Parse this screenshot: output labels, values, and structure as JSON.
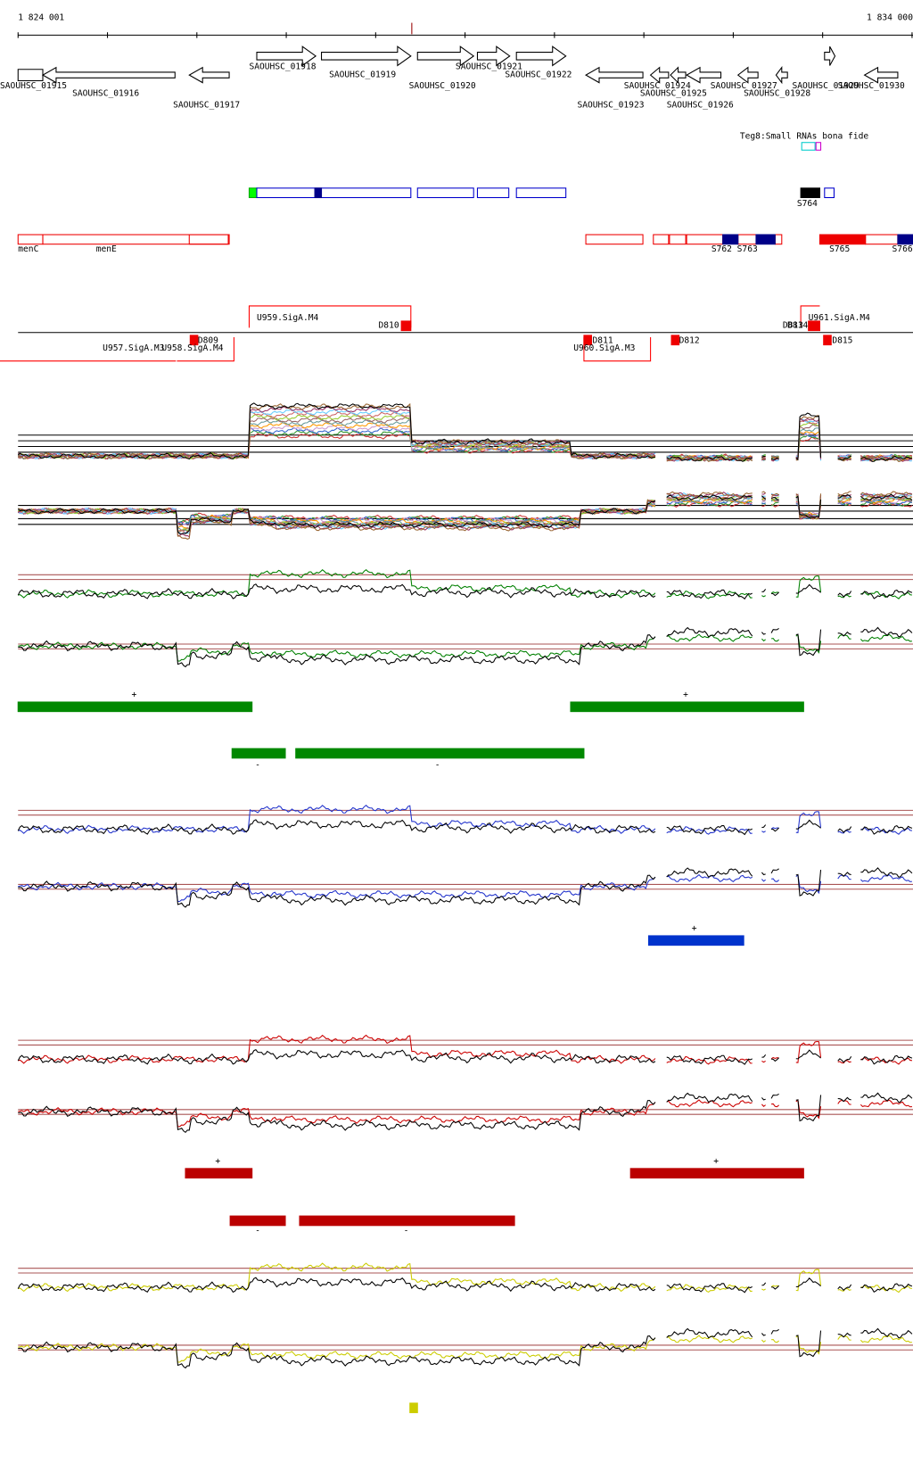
{
  "ruler": {
    "start": "1 824 001",
    "end": "1 834 000"
  },
  "genes": [
    "SAOUHSC_01915",
    "SAOUHSC_01916",
    "SAOUHSC_01917",
    "SAOUHSC_01918",
    "SAOUHSC_01919",
    "SAOUHSC_01920",
    "SAOUHSC_01921",
    "SAOUHSC_01922",
    "SAOUHSC_01923",
    "SAOUHSC_01924",
    "SAOUHSC_01925",
    "SAOUHSC_01926",
    "SAOUHSC_01927",
    "SAOUHSC_01928",
    "SAOUHSC_01929",
    "SAOUHSC_01930"
  ],
  "small_rnas": {
    "title": "Teg8:Small RNAs bona fide",
    "labels": [
      "S764"
    ]
  },
  "features": [
    "menC",
    "menE",
    "S762",
    "S763",
    "S765",
    "S766"
  ],
  "promoters": [
    "U959.SigA.M4",
    "D810",
    "U957.SigA.M3",
    "U958.SigA.M4",
    "D809",
    "D811",
    "U960.SigA.M3",
    "D812",
    "D813",
    "D814",
    "U961.SigA.M4",
    "D815"
  ],
  "strand_labels": [
    "+",
    "+",
    "-",
    "-",
    "+",
    "+",
    "+",
    "-",
    "-"
  ]
}
